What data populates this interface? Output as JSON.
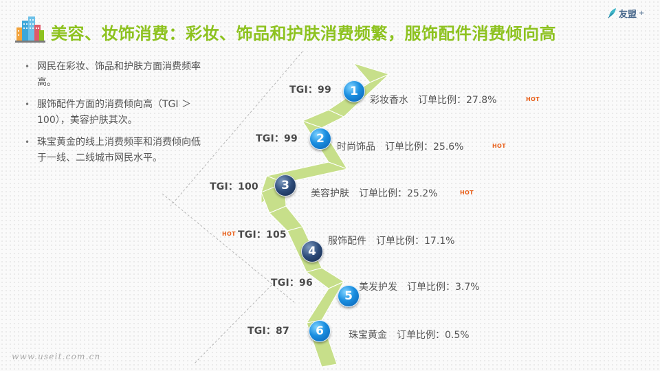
{
  "header": {
    "title": "美容、妆饰消费：彩妆、饰品和护肤消费频繁，服饰配件消费倾向高",
    "title_color": "#8dc21f",
    "title_icon": "city-buildings-icon"
  },
  "brand": {
    "logo_icon": "umeng-leaf-icon",
    "logo_text": "友盟",
    "logo_suffix": "+"
  },
  "bullets": [
    "网民在彩妆、饰品和护肤方面消费频率高。",
    "服饰配件方面的消费倾向高（TGI ＞100），美容护肤其次。",
    "珠宝黄金的线上消费频率和消费倾向低于一线、二线城市网民水平。"
  ],
  "bullet_marker": "•",
  "hot_label": "HOT",
  "items": [
    {
      "rank": "1",
      "tgi": "TGI：99",
      "name": "彩妆香水",
      "ratio": "订单比例：27.8%"
    },
    {
      "rank": "2",
      "tgi": "TGI：99",
      "name": "时尚饰品",
      "ratio": "订单比例：25.6%"
    },
    {
      "rank": "3",
      "tgi": "TGI：100",
      "name": "美容护肤",
      "ratio": "订单比例：25.2%"
    },
    {
      "rank": "4",
      "tgi": "TGI：105",
      "name": "服饰配件",
      "ratio": "订单比例：17.1%"
    },
    {
      "rank": "5",
      "tgi": "TGI：96",
      "name": "美发护发",
      "ratio": "订单比例：3.7%"
    },
    {
      "rank": "6",
      "tgi": "TGI：87",
      "name": "珠宝黄金",
      "ratio": "订单比例：0.5%"
    }
  ],
  "colors": {
    "arrow_green": "#c7df8a",
    "node_blue": "#1a8ee0",
    "node_navy": "#2c4a78",
    "hot": "#e8601b"
  },
  "footer": {
    "url": "www.useit.com.cn"
  }
}
